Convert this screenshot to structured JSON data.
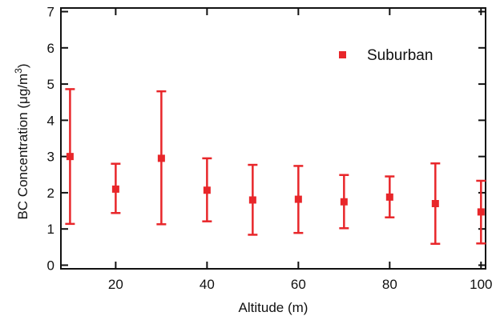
{
  "chart_data": {
    "type": "scatter",
    "title": "",
    "xlabel": "Altitude (m)",
    "ylabel_prefix": "BC Concentration (",
    "ylabel_unit": "μg/m",
    "ylabel_sup": "3",
    "ylabel_suffix": ")",
    "xlim": [
      8,
      101
    ],
    "ylim": [
      -0.1,
      7.1
    ],
    "xticks": [
      20,
      40,
      60,
      80,
      100
    ],
    "yticks": [
      0,
      1,
      2,
      3,
      4,
      5,
      6,
      7
    ],
    "grid": false,
    "legend_position": "top-right",
    "series": [
      {
        "name": "Suburban",
        "color": "#e8262a",
        "marker": "square",
        "x": [
          10,
          20,
          30,
          40,
          50,
          60,
          70,
          80,
          90,
          100
        ],
        "y": [
          3.0,
          2.1,
          2.95,
          2.07,
          1.8,
          1.82,
          1.75,
          1.88,
          1.7,
          1.47
        ],
        "err_low": [
          1.14,
          1.44,
          1.13,
          1.21,
          0.84,
          0.89,
          1.02,
          1.32,
          0.59,
          0.6
        ],
        "err_high": [
          4.86,
          2.8,
          4.8,
          2.95,
          2.77,
          2.74,
          2.49,
          2.45,
          2.81,
          2.33
        ]
      }
    ]
  }
}
